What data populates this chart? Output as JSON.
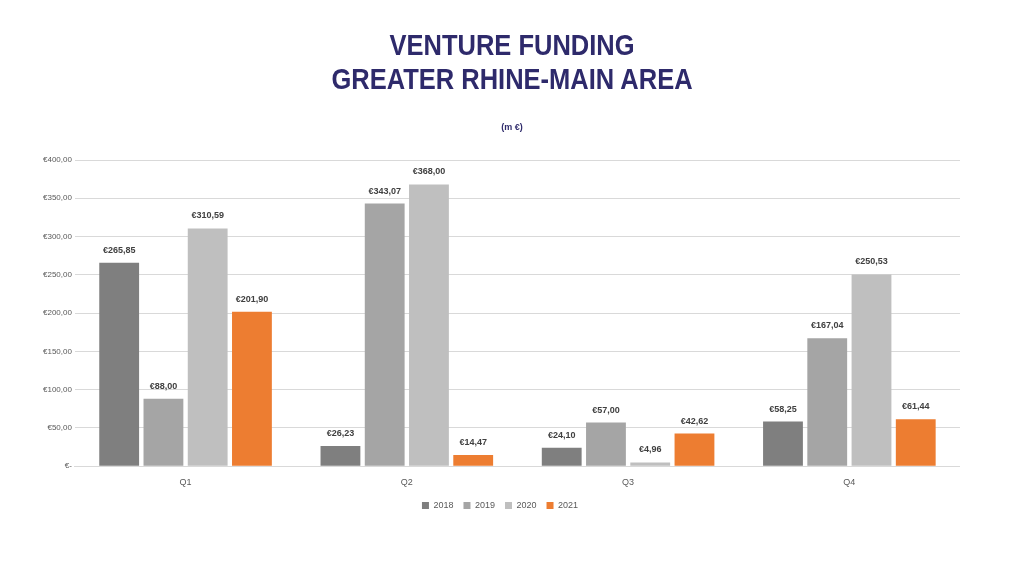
{
  "chart_data": {
    "type": "bar",
    "title": "VENTURE FUNDING\nGREATER RHINE-MAIN AREA",
    "subtitle": "(m €)",
    "categories": [
      "Q1",
      "Q2",
      "Q3",
      "Q4"
    ],
    "series": [
      {
        "name": "2018",
        "color": "#7f7f7f",
        "values": [
          265.85,
          26.23,
          24.1,
          58.25
        ],
        "value_labels": [
          "€265,85",
          "€26,23",
          "€24,10",
          "€58,25"
        ]
      },
      {
        "name": "2019",
        "color": "#a5a5a5",
        "values": [
          88.0,
          343.07,
          57.0,
          167.04
        ],
        "value_labels": [
          "€88,00",
          "€343,07",
          "€57,00",
          "€167,04"
        ]
      },
      {
        "name": "2020",
        "color": "#bfbfbf",
        "values": [
          310.59,
          368.0,
          4.96,
          250.53
        ],
        "value_labels": [
          "€310,59",
          "€368,00",
          "€4,96",
          "€250,53"
        ]
      },
      {
        "name": "2021",
        "color": "#ed7d31",
        "values": [
          201.9,
          14.47,
          42.62,
          61.44
        ],
        "value_labels": [
          "€201,90",
          "€14,47",
          "€42,62",
          "€61,44"
        ]
      }
    ],
    "ylim": [
      0,
      400
    ],
    "yticks": [
      {
        "value": 0,
        "label": "€-"
      },
      {
        "value": 50,
        "label": "€50,00"
      },
      {
        "value": 100,
        "label": "€100,00"
      },
      {
        "value": 150,
        "label": "€150,00"
      },
      {
        "value": 200,
        "label": "€200,00"
      },
      {
        "value": 250,
        "label": "€250,00"
      },
      {
        "value": 300,
        "label": "€300,00"
      },
      {
        "value": 350,
        "label": "€350,00"
      },
      {
        "value": 400,
        "label": "€400,00"
      }
    ],
    "grid": "y",
    "legend": "bottom"
  }
}
